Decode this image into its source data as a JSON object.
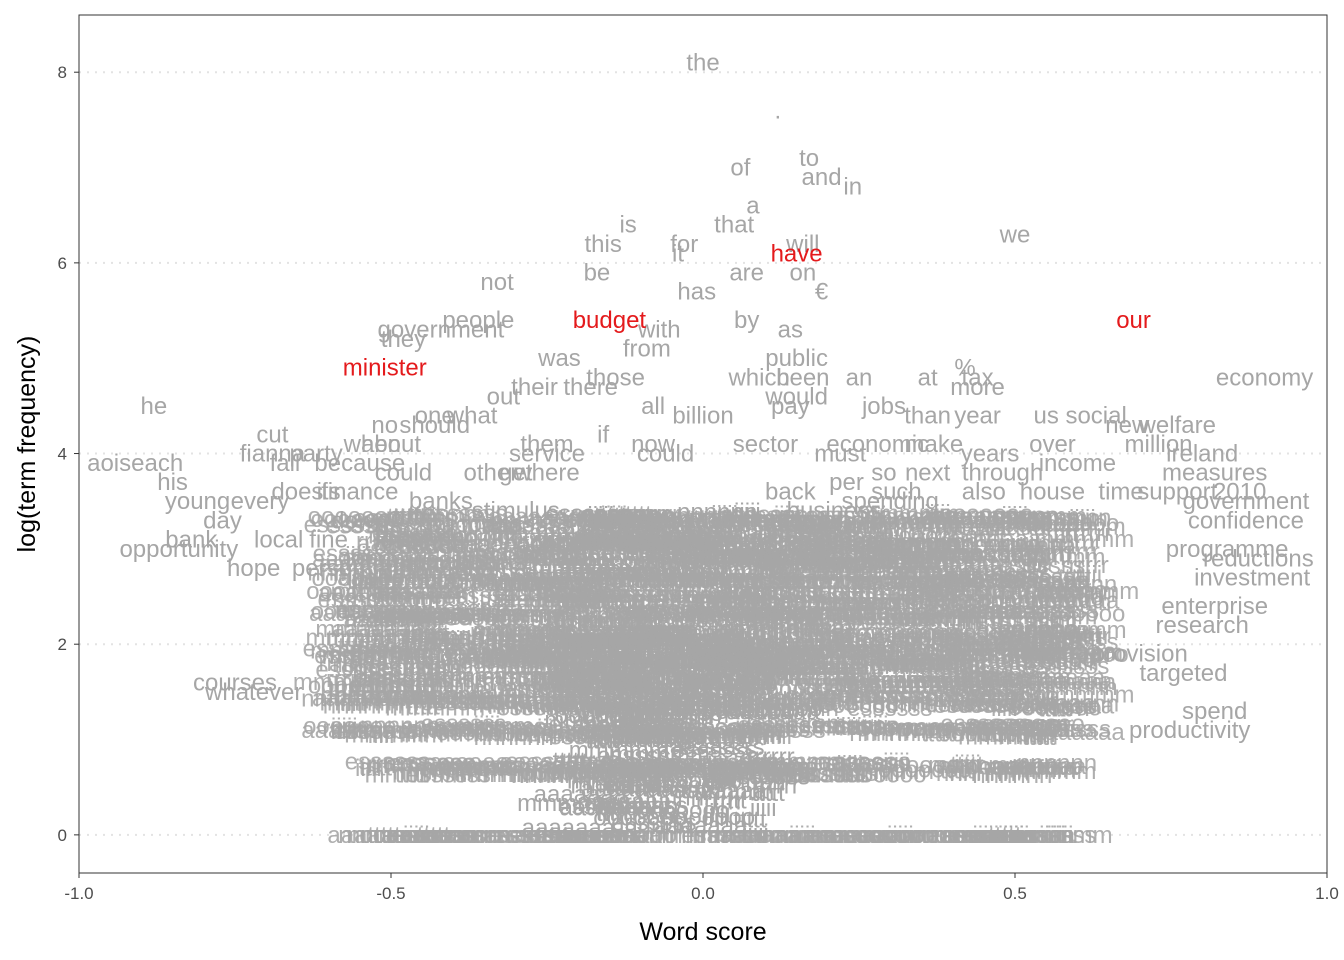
{
  "chart_data": {
    "type": "scatter",
    "title": "",
    "xlabel": "Word score",
    "ylabel": "log(term frequency)",
    "xlim": [
      -1.0,
      1.0
    ],
    "ylim": [
      -0.4,
      8.6
    ],
    "x_ticks": [
      -1.0,
      -0.5,
      0.0,
      0.5,
      1.0
    ],
    "x_tick_labels": [
      "-1.0",
      "-0.5",
      "0.0",
      "0.5",
      "1.0"
    ],
    "y_ticks": [
      0,
      2,
      4,
      6,
      8
    ],
    "y_tick_labels": [
      "0",
      "2",
      "4",
      "6",
      "8"
    ],
    "grid": "horizontal dotted",
    "colors": {
      "default": "#a6a6a6",
      "highlight": "#e41a1c",
      "grid": "#e3e3e3",
      "axis": "#333333"
    },
    "points": [
      {
        "word": "the",
        "x": 0.0,
        "y": 8.1
      },
      {
        "word": ".",
        "x": 0.12,
        "y": 7.6
      },
      {
        "word": "of",
        "x": 0.06,
        "y": 7.0
      },
      {
        "word": "to",
        "x": 0.17,
        "y": 7.1
      },
      {
        "word": "and",
        "x": 0.19,
        "y": 6.9
      },
      {
        "word": "in",
        "x": 0.24,
        "y": 6.8
      },
      {
        "word": "a",
        "x": 0.08,
        "y": 6.6
      },
      {
        "word": "is",
        "x": -0.12,
        "y": 6.4
      },
      {
        "word": "that",
        "x": 0.05,
        "y": 6.4
      },
      {
        "word": "we",
        "x": 0.5,
        "y": 6.3
      },
      {
        "word": "this",
        "x": -0.16,
        "y": 6.2
      },
      {
        "word": "for",
        "x": -0.03,
        "y": 6.2
      },
      {
        "word": "it",
        "x": -0.04,
        "y": 6.1
      },
      {
        "word": "will",
        "x": 0.16,
        "y": 6.2
      },
      {
        "word": "have",
        "x": 0.15,
        "y": 6.1
      },
      {
        "word": "be",
        "x": -0.17,
        "y": 5.9
      },
      {
        "word": "not",
        "x": -0.33,
        "y": 5.8
      },
      {
        "word": "are",
        "x": 0.07,
        "y": 5.9
      },
      {
        "word": "on",
        "x": 0.16,
        "y": 5.9
      },
      {
        "word": "has",
        "x": -0.01,
        "y": 5.7
      },
      {
        "word": "€",
        "x": 0.19,
        "y": 5.7
      },
      {
        "word": "people",
        "x": -0.36,
        "y": 5.4
      },
      {
        "word": "government",
        "x": -0.42,
        "y": 5.3
      },
      {
        "word": "they",
        "x": -0.48,
        "y": 5.2
      },
      {
        "word": "budget",
        "x": -0.15,
        "y": 5.4
      },
      {
        "word": "with",
        "x": -0.07,
        "y": 5.3
      },
      {
        "word": "by",
        "x": 0.07,
        "y": 5.4
      },
      {
        "word": "as",
        "x": 0.14,
        "y": 5.3
      },
      {
        "word": "our",
        "x": 0.69,
        "y": 5.4
      },
      {
        "word": "from",
        "x": -0.09,
        "y": 5.1
      },
      {
        "word": "was",
        "x": -0.23,
        "y": 5.0
      },
      {
        "word": "public",
        "x": 0.15,
        "y": 5.0
      },
      {
        "word": "minister",
        "x": -0.51,
        "y": 4.9
      },
      {
        "word": "%",
        "x": 0.42,
        "y": 4.9
      },
      {
        "word": "those",
        "x": -0.14,
        "y": 4.8
      },
      {
        "word": "there",
        "x": -0.18,
        "y": 4.7
      },
      {
        "word": "which",
        "x": 0.09,
        "y": 4.8
      },
      {
        "word": "been",
        "x": 0.16,
        "y": 4.8
      },
      {
        "word": "an",
        "x": 0.25,
        "y": 4.8
      },
      {
        "word": "at",
        "x": 0.36,
        "y": 4.8
      },
      {
        "word": "more",
        "x": 0.44,
        "y": 4.7
      },
      {
        "word": "tax",
        "x": 0.44,
        "y": 4.8
      },
      {
        "word": "economy",
        "x": 0.9,
        "y": 4.8
      },
      {
        "word": "their",
        "x": -0.27,
        "y": 4.7
      },
      {
        "word": "out",
        "x": -0.32,
        "y": 4.6
      },
      {
        "word": "would",
        "x": 0.15,
        "y": 4.6
      },
      {
        "word": "he",
        "x": -0.88,
        "y": 4.5
      },
      {
        "word": "all",
        "x": -0.08,
        "y": 4.5
      },
      {
        "word": "billion",
        "x": 0.0,
        "y": 4.4
      },
      {
        "word": "pay",
        "x": 0.14,
        "y": 4.5
      },
      {
        "word": "jobs",
        "x": 0.29,
        "y": 4.5
      },
      {
        "word": "than",
        "x": 0.36,
        "y": 4.4
      },
      {
        "word": "year",
        "x": 0.44,
        "y": 4.4
      },
      {
        "word": "one",
        "x": -0.43,
        "y": 4.4
      },
      {
        "word": "what",
        "x": -0.37,
        "y": 4.4
      },
      {
        "word": "no",
        "x": -0.51,
        "y": 4.3
      },
      {
        "word": "should",
        "x": -0.43,
        "y": 4.3
      },
      {
        "word": "us",
        "x": 0.55,
        "y": 4.4
      },
      {
        "word": "social",
        "x": 0.63,
        "y": 4.4
      },
      {
        "word": "new",
        "x": 0.68,
        "y": 4.3
      },
      {
        "word": "welfare",
        "x": 0.76,
        "y": 4.3
      },
      {
        "word": "cut",
        "x": -0.69,
        "y": 4.2
      },
      {
        "word": "if",
        "x": -0.16,
        "y": 4.2
      },
      {
        "word": "them",
        "x": -0.25,
        "y": 4.1
      },
      {
        "word": "now",
        "x": -0.08,
        "y": 4.1
      },
      {
        "word": "about",
        "x": -0.5,
        "y": 4.1
      },
      {
        "word": "when",
        "x": -0.53,
        "y": 4.1
      },
      {
        "word": "sector",
        "x": 0.1,
        "y": 4.1
      },
      {
        "word": "economic",
        "x": 0.28,
        "y": 4.1
      },
      {
        "word": "make",
        "x": 0.37,
        "y": 4.1
      },
      {
        "word": "years",
        "x": 0.46,
        "y": 4.0
      },
      {
        "word": "over",
        "x": 0.56,
        "y": 4.1
      },
      {
        "word": "million",
        "x": 0.73,
        "y": 4.1
      },
      {
        "word": "ireland",
        "x": 0.8,
        "y": 4.0
      },
      {
        "word": "fianna",
        "x": -0.69,
        "y": 4.0
      },
      {
        "word": "party",
        "x": -0.62,
        "y": 4.0
      },
      {
        "word": "must",
        "x": 0.22,
        "y": 4.0
      },
      {
        "word": "service",
        "x": -0.25,
        "y": 4.0
      },
      {
        "word": "could",
        "x": -0.06,
        "y": 4.0
      },
      {
        "word": "income",
        "x": 0.6,
        "y": 3.9
      },
      {
        "word": "fail",
        "x": -0.67,
        "y": 3.9
      },
      {
        "word": "because",
        "x": -0.55,
        "y": 3.9
      },
      {
        "word": "could",
        "x": -0.48,
        "y": 3.8
      },
      {
        "word": "other",
        "x": -0.34,
        "y": 3.8
      },
      {
        "word": "get",
        "x": -0.3,
        "y": 3.8
      },
      {
        "word": "where",
        "x": -0.25,
        "y": 3.8
      },
      {
        "word": "per",
        "x": 0.23,
        "y": 3.7
      },
      {
        "word": "so",
        "x": 0.29,
        "y": 3.8
      },
      {
        "word": "next",
        "x": 0.36,
        "y": 3.8
      },
      {
        "word": "through",
        "x": 0.48,
        "y": 3.8
      },
      {
        "word": "measures",
        "x": 0.82,
        "y": 3.8
      },
      {
        "word": "aoiseach",
        "x": -0.91,
        "y": 3.9
      },
      {
        "word": "his",
        "x": -0.85,
        "y": 3.7
      },
      {
        "word": "its",
        "x": -0.6,
        "y": 3.6
      },
      {
        "word": "does",
        "x": -0.65,
        "y": 3.6
      },
      {
        "word": "finance",
        "x": -0.55,
        "y": 3.6
      },
      {
        "word": "banks",
        "x": -0.42,
        "y": 3.5
      },
      {
        "word": "such",
        "x": 0.31,
        "y": 3.6
      },
      {
        "word": "also",
        "x": 0.45,
        "y": 3.6
      },
      {
        "word": "house",
        "x": 0.56,
        "y": 3.6
      },
      {
        "word": "time",
        "x": 0.67,
        "y": 3.6
      },
      {
        "word": "support",
        "x": 0.76,
        "y": 3.6
      },
      {
        "word": "2010",
        "x": 0.86,
        "y": 3.6
      },
      {
        "word": "young",
        "x": -0.81,
        "y": 3.5
      },
      {
        "word": "every",
        "x": -0.71,
        "y": 3.5
      },
      {
        "word": "day",
        "x": -0.77,
        "y": 3.3
      },
      {
        "word": "down",
        "x": -0.55,
        "y": 3.3
      },
      {
        "word": "stimulus",
        "x": -0.3,
        "y": 3.4
      },
      {
        "word": "back",
        "x": 0.14,
        "y": 3.6
      },
      {
        "word": "spending",
        "x": 0.3,
        "y": 3.5
      },
      {
        "word": "government",
        "x": 0.87,
        "y": 3.5
      },
      {
        "word": "business",
        "x": 0.21,
        "y": 3.4
      },
      {
        "word": "labour",
        "x": 0.24,
        "y": 3.3
      },
      {
        "word": "confidence",
        "x": 0.87,
        "y": 3.3
      },
      {
        "word": "bank",
        "x": -0.82,
        "y": 3.1
      },
      {
        "word": "local",
        "x": -0.68,
        "y": 3.1
      },
      {
        "word": "fine",
        "x": -0.6,
        "y": 3.1
      },
      {
        "word": "second",
        "x": -0.46,
        "y": 3.2
      },
      {
        "word": "know",
        "x": -0.48,
        "y": 3.1
      },
      {
        "word": "families",
        "x": -0.13,
        "y": 3.3
      },
      {
        "word": "strategy",
        "x": 0.0,
        "y": 3.3
      },
      {
        "word": "programme",
        "x": 0.84,
        "y": 3.0
      },
      {
        "word": "opportunity",
        "x": -0.84,
        "y": 3.0
      },
      {
        "word": "hope",
        "x": -0.72,
        "y": 2.8
      },
      {
        "word": "person",
        "x": -0.6,
        "y": 2.8
      },
      {
        "word": "obama",
        "x": -0.34,
        "y": 2.8
      },
      {
        "word": "reductions",
        "x": 0.89,
        "y": 2.9
      },
      {
        "word": "investment",
        "x": 0.88,
        "y": 2.7
      },
      {
        "word": "enterprise",
        "x": 0.82,
        "y": 2.4
      },
      {
        "word": "research",
        "x": 0.8,
        "y": 2.2
      },
      {
        "word": "provision",
        "x": 0.7,
        "y": 1.9
      },
      {
        "word": "targeted",
        "x": 0.77,
        "y": 1.7
      },
      {
        "word": "courses",
        "x": -0.75,
        "y": 1.6
      },
      {
        "word": "whatever",
        "x": -0.72,
        "y": 1.5
      },
      {
        "word": "productivity",
        "x": 0.78,
        "y": 1.1
      },
      {
        "word": "spend",
        "x": 0.82,
        "y": 1.3
      }
    ],
    "highlighted": [
      "have",
      "budget",
      "our",
      "minister"
    ]
  }
}
